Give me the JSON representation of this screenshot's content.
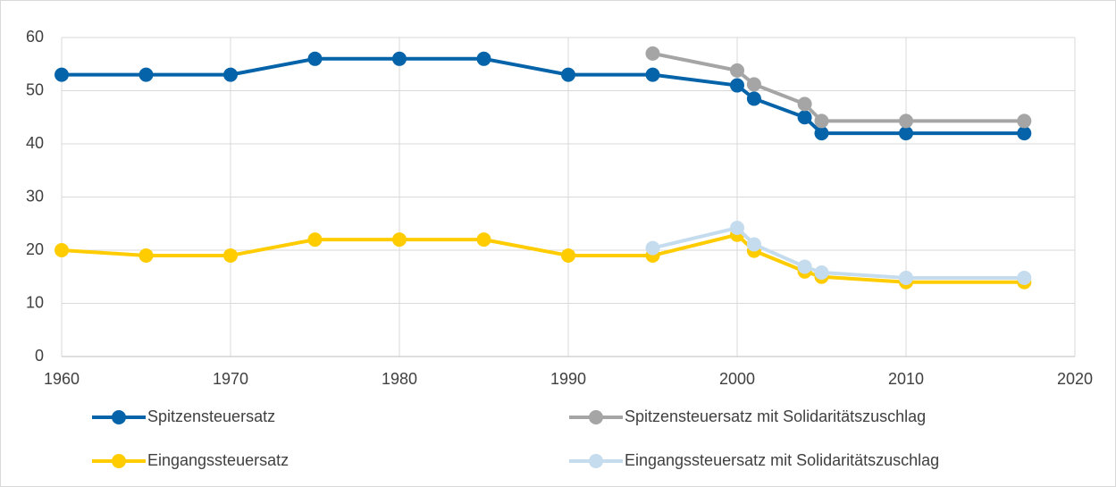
{
  "chart_data": {
    "type": "line",
    "xlim": [
      1960,
      2020
    ],
    "xticks": [
      1960,
      1970,
      1980,
      1990,
      2000,
      2010,
      2020
    ],
    "ylim": [
      0,
      60
    ],
    "yticks": [
      0,
      10,
      20,
      30,
      40,
      50,
      60
    ],
    "grid": true,
    "legend": "bottom",
    "series": [
      {
        "name": "Spitzensteuersatz",
        "color": "#0563a9",
        "x": [
          1960,
          1965,
          1970,
          1975,
          1980,
          1985,
          1990,
          1995,
          2000,
          2001,
          2004,
          2005,
          2010,
          2017
        ],
        "values": [
          53,
          53,
          53,
          56,
          56,
          56,
          53,
          53,
          51,
          48.5,
          45,
          42,
          42,
          42
        ]
      },
      {
        "name": "Spitzensteuersatz mit Solidaritätszuschlag",
        "color": "#a5a5a5",
        "x": [
          1995,
          2000,
          2001,
          2004,
          2005,
          2010,
          2017
        ],
        "values": [
          57,
          53.8,
          51.2,
          47.5,
          44.3,
          44.3,
          44.3
        ]
      },
      {
        "name": "Eingangssteuersatz",
        "color": "#ffcc00",
        "x": [
          1960,
          1965,
          1970,
          1975,
          1980,
          1985,
          1990,
          1995,
          2000,
          2001,
          2004,
          2005,
          2010,
          2017
        ],
        "values": [
          20,
          19,
          19,
          22,
          22,
          22,
          19,
          19,
          22.9,
          19.9,
          16,
          15,
          14,
          14
        ]
      },
      {
        "name": "Eingangssteuersatz mit Solidaritätszuschlag",
        "color": "#c5dcee",
        "x": [
          1995,
          2000,
          2001,
          2004,
          2005,
          2010,
          2017
        ],
        "values": [
          20.4,
          24.2,
          21.1,
          16.9,
          15.8,
          14.8,
          14.8
        ]
      }
    ]
  }
}
